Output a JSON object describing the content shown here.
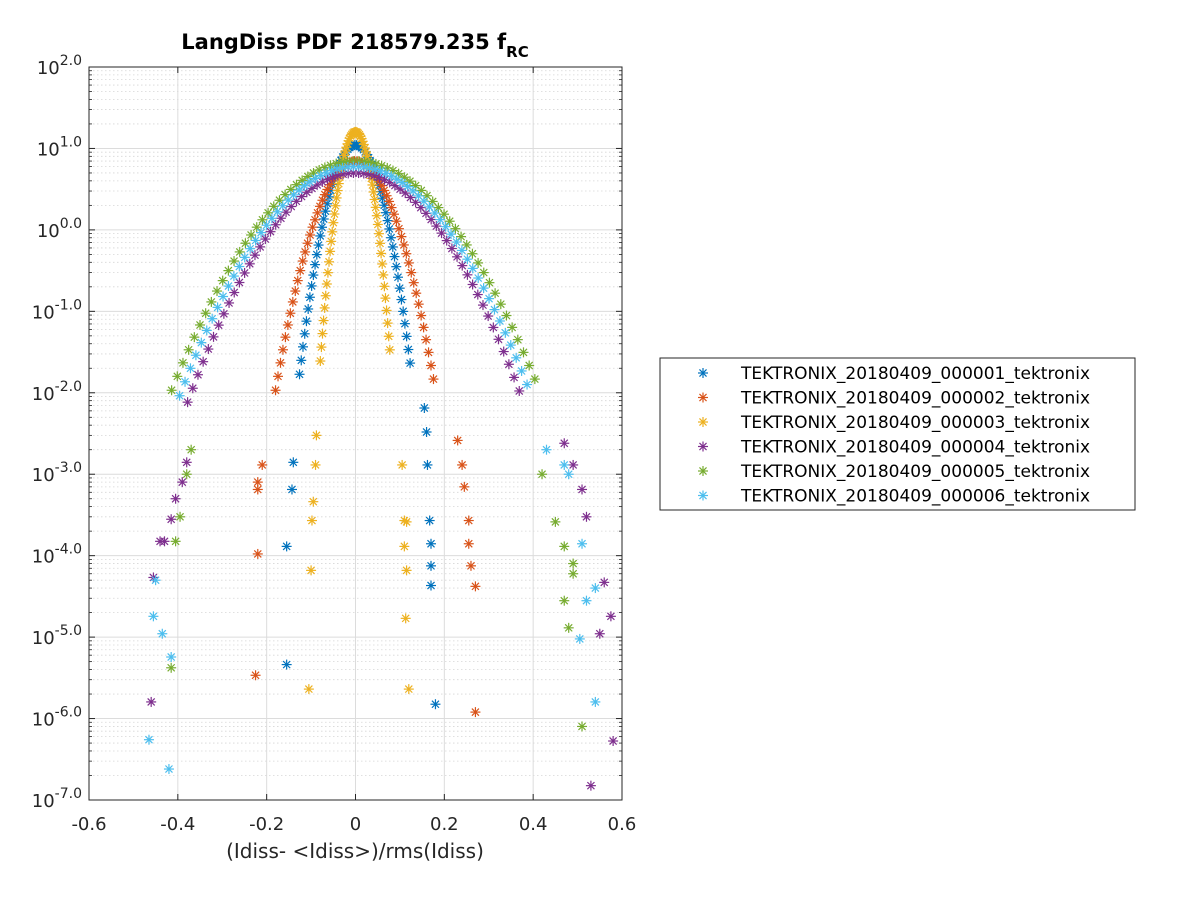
{
  "chart_data": {
    "type": "scatter",
    "title": "LangDiss PDF 218579.235 f",
    "title_subscript": "RC",
    "xlabel": "(Idiss- <Idiss>)/rms(Idiss)",
    "ylabel": "",
    "xlim": [
      -0.6,
      0.6
    ],
    "ylim": [
      1e-07,
      100
    ],
    "yscale": "log",
    "grid": true,
    "minor_grid": true,
    "legend_position": "outside-right",
    "marker": "asterisk",
    "x_ticks": [
      -0.6,
      -0.4,
      -0.2,
      0,
      0.2,
      0.4,
      0.6
    ],
    "x_tick_labels": [
      "-0.6",
      "-0.4",
      "-0.2",
      "0",
      "0.2",
      "0.4",
      "0.6"
    ],
    "y_ticks": [
      {
        "value": 100,
        "base": "10",
        "exp": "2.0"
      },
      {
        "value": 10,
        "base": "10",
        "exp": "1.0"
      },
      {
        "value": 1,
        "base": "10",
        "exp": "0.0"
      },
      {
        "value": 0.1,
        "base": "10",
        "exp": "-1.0"
      },
      {
        "value": 0.01,
        "base": "10",
        "exp": "-2.0"
      },
      {
        "value": 0.001,
        "base": "10",
        "exp": "-3.0"
      },
      {
        "value": 0.0001,
        "base": "10",
        "exp": "-4.0"
      },
      {
        "value": 1e-05,
        "base": "10",
        "exp": "-5.0"
      },
      {
        "value": 1e-06,
        "base": "10",
        "exp": "-6.0"
      },
      {
        "value": 1e-07,
        "base": "10",
        "exp": "-7.0"
      }
    ],
    "series": [
      {
        "name": "TEKTRONIX_20180409_000001_tektronix",
        "color": "#0072BD",
        "sigma": 0.035,
        "peak": 11,
        "points": [
          [
            -0.155,
            4.6e-06
          ],
          [
            -0.155,
            0.00013
          ],
          [
            -0.143,
            0.00065
          ],
          [
            -0.14,
            0.0014
          ],
          [
            0.18,
            1.5e-06
          ],
          [
            0.17,
            4.3e-05
          ],
          [
            0.17,
            7.5e-05
          ],
          [
            0.17,
            0.00014
          ],
          [
            0.167,
            0.00027
          ],
          [
            0.162,
            0.0013
          ],
          [
            0.16,
            0.0033
          ],
          [
            0.155,
            0.0065
          ]
        ]
      },
      {
        "name": "TEKTRONIX_20180409_000002_tektronix",
        "color": "#D95319",
        "sigma": 0.05,
        "peak": 7,
        "points": [
          [
            -0.225,
            3.4e-06
          ],
          [
            -0.22,
            0.000105
          ],
          [
            -0.22,
            0.00065
          ],
          [
            -0.22,
            0.0008
          ],
          [
            -0.21,
            0.0013
          ],
          [
            0.27,
            1.2e-06
          ],
          [
            0.27,
            4.2e-05
          ],
          [
            0.26,
            7.5e-05
          ],
          [
            0.255,
            0.00014
          ],
          [
            0.255,
            0.00027
          ],
          [
            0.245,
            0.0007
          ],
          [
            0.24,
            0.0013
          ],
          [
            0.23,
            0.0026
          ]
        ]
      },
      {
        "name": "TEKTRONIX_20180409_000003_tektronix",
        "color": "#EDB120",
        "sigma": 0.022,
        "peak": 16,
        "points": [
          [
            -0.105,
            2.3e-06
          ],
          [
            -0.1,
            6.6e-05
          ],
          [
            -0.098,
            0.00027
          ],
          [
            -0.095,
            0.00046
          ],
          [
            -0.09,
            0.0013
          ],
          [
            -0.088,
            0.003
          ],
          [
            0.12,
            2.3e-06
          ],
          [
            0.113,
            1.7e-05
          ],
          [
            0.115,
            6.6e-05
          ],
          [
            0.11,
            0.00013
          ],
          [
            0.115,
            0.00026
          ],
          [
            0.11,
            0.00027
          ],
          [
            0.105,
            0.0013
          ]
        ]
      },
      {
        "name": "TEKTRONIX_20180409_000004_tektronix",
        "color": "#7E2F8E",
        "sigma": 0.105,
        "peak": 5,
        "points": [
          [
            -0.46,
            1.6e-06
          ],
          [
            -0.455,
            5.4e-05
          ],
          [
            -0.44,
            0.00015
          ],
          [
            -0.43,
            0.00015
          ],
          [
            -0.415,
            0.00028
          ],
          [
            -0.405,
            0.0005
          ],
          [
            -0.39,
            0.0008
          ],
          [
            -0.38,
            0.0014
          ],
          [
            0.58,
            5.3e-07
          ],
          [
            0.575,
            1.8e-05
          ],
          [
            0.56,
            4.7e-05
          ],
          [
            0.55,
            1.1e-05
          ],
          [
            0.53,
            1.5e-07
          ],
          [
            0.52,
            0.0003
          ],
          [
            0.51,
            0.00065
          ],
          [
            0.49,
            0.0013
          ],
          [
            0.47,
            0.0024
          ]
        ]
      },
      {
        "name": "TEKTRONIX_20180409_000005_tektronix",
        "color": "#77AC30",
        "sigma": 0.115,
        "peak": 7,
        "points": [
          [
            -0.415,
            4.2e-06
          ],
          [
            -0.405,
            0.00015
          ],
          [
            -0.395,
            0.0003
          ],
          [
            -0.38,
            0.001
          ],
          [
            -0.37,
            0.002
          ],
          [
            0.51,
            8e-07
          ],
          [
            0.48,
            1.3e-05
          ],
          [
            0.47,
            2.8e-05
          ],
          [
            0.49,
            6e-05
          ],
          [
            0.49,
            8e-05
          ],
          [
            0.47,
            0.00013
          ],
          [
            0.45,
            0.00026
          ],
          [
            0.42,
            0.001
          ]
        ]
      },
      {
        "name": "TEKTRONIX_20180409_000006_tektronix",
        "color": "#4DBEEE",
        "sigma": 0.11,
        "peak": 6,
        "points": [
          [
            -0.465,
            5.5e-07
          ],
          [
            -0.42,
            2.4e-07
          ],
          [
            -0.415,
            5.7e-06
          ],
          [
            -0.455,
            1.8e-05
          ],
          [
            -0.435,
            1.1e-05
          ],
          [
            -0.45,
            5e-05
          ],
          [
            0.54,
            1.6e-06
          ],
          [
            0.505,
            9.5e-06
          ],
          [
            0.52,
            2.8e-05
          ],
          [
            0.54,
            4e-05
          ],
          [
            0.51,
            0.00014
          ],
          [
            0.48,
            0.001
          ],
          [
            0.47,
            0.0013
          ],
          [
            0.43,
            0.002
          ]
        ]
      }
    ]
  }
}
